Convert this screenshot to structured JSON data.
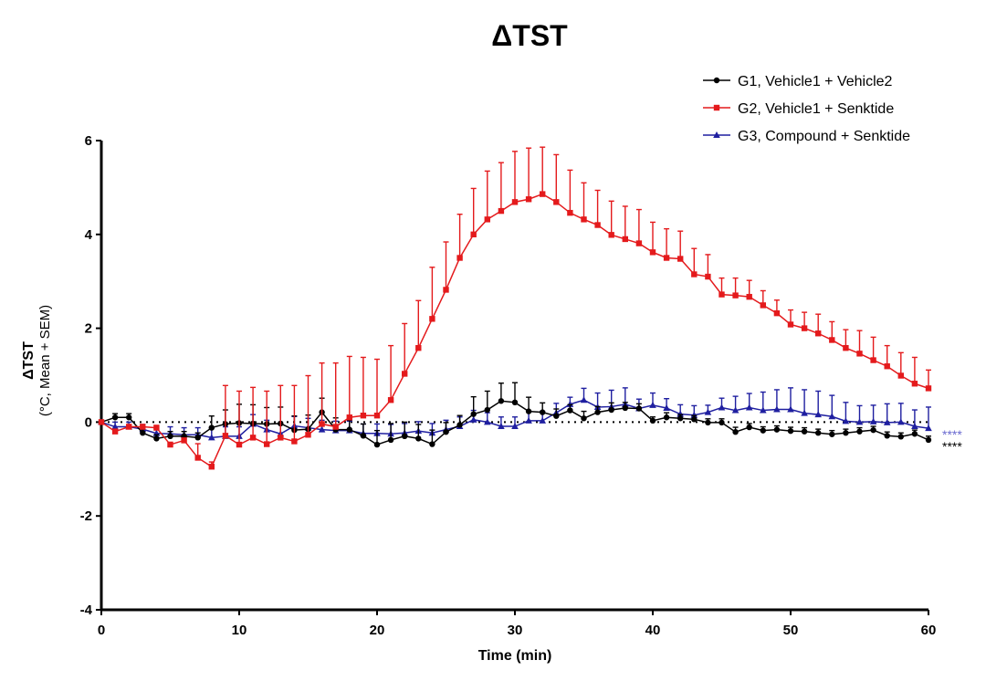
{
  "chart_data": {
    "type": "line",
    "title": "ΔTST",
    "xlabel": "Time (min)",
    "ylabel": [
      "ΔTST",
      "(°C, Mean + SEM)"
    ],
    "xlim": [
      0,
      60
    ],
    "ylim": [
      -4,
      6
    ],
    "xticks": [
      0,
      10,
      20,
      30,
      40,
      50,
      60
    ],
    "yticks": [
      6,
      4,
      2,
      0,
      -2,
      -4
    ],
    "grid": false,
    "legend_position": "top-right",
    "reference_line": 0,
    "x": [
      0,
      1,
      2,
      3,
      4,
      5,
      6,
      7,
      8,
      9,
      10,
      11,
      12,
      13,
      14,
      15,
      16,
      17,
      18,
      19,
      20,
      21,
      22,
      23,
      24,
      25,
      26,
      27,
      28,
      29,
      30,
      31,
      32,
      33,
      34,
      35,
      36,
      37,
      38,
      39,
      40,
      41,
      42,
      43,
      44,
      45,
      46,
      47,
      48,
      49,
      50,
      51,
      52,
      53,
      54,
      55,
      56,
      57,
      58,
      59,
      60
    ],
    "series": [
      {
        "name": "G1, Vehicle1 + Vehicle2",
        "color": "#000000",
        "marker": "circle",
        "values": [
          0,
          0.1,
          0.1,
          -0.23,
          -0.35,
          -0.3,
          -0.3,
          -0.33,
          -0.12,
          -0.04,
          -0.02,
          -0.03,
          -0.04,
          -0.03,
          -0.17,
          -0.15,
          0.21,
          -0.16,
          -0.16,
          -0.29,
          -0.48,
          -0.38,
          -0.3,
          -0.35,
          -0.47,
          -0.21,
          -0.06,
          0.17,
          0.26,
          0.45,
          0.42,
          0.23,
          0.21,
          0.13,
          0.25,
          0.08,
          0.21,
          0.26,
          0.3,
          0.29,
          0.03,
          0.1,
          0.08,
          0.06,
          -0.01,
          -0.01,
          -0.21,
          -0.11,
          -0.18,
          -0.16,
          -0.19,
          -0.2,
          -0.23,
          -0.26,
          -0.23,
          -0.2,
          -0.17,
          -0.29,
          -0.31,
          -0.25,
          -0.38
        ],
        "sem": [
          0,
          0.08,
          0.08,
          0.08,
          0.08,
          0.1,
          0.1,
          0.1,
          0.25,
          0.3,
          0.4,
          0.4,
          0.35,
          0.35,
          0.3,
          0.3,
          0.3,
          0.25,
          0.2,
          0.25,
          0.3,
          0.35,
          0.3,
          0.3,
          0.3,
          0.2,
          0.2,
          0.37,
          0.4,
          0.38,
          0.42,
          0.3,
          0.2,
          0.15,
          0.12,
          0.15,
          0.12,
          0.15,
          0.12,
          0.1,
          0.08,
          0.1,
          0.08,
          0.08,
          0.08,
          0.08,
          0.1,
          0.08,
          0.08,
          0.08,
          0.08,
          0.08,
          0.08,
          0.08,
          0.08,
          0.08,
          0.08,
          0.08,
          0.08,
          0.08,
          0.08
        ],
        "significance": "****"
      },
      {
        "name": "G2, Vehicle1 + Senktide",
        "color": "#e41a1c",
        "marker": "square",
        "values": [
          0,
          -0.2,
          -0.1,
          -0.1,
          -0.12,
          -0.48,
          -0.39,
          -0.76,
          -0.95,
          -0.29,
          -0.48,
          -0.33,
          -0.47,
          -0.33,
          -0.41,
          -0.27,
          -0.04,
          -0.1,
          0.1,
          0.14,
          0.14,
          0.47,
          1.03,
          1.58,
          2.2,
          2.82,
          3.5,
          4.0,
          4.32,
          4.5,
          4.69,
          4.75,
          4.86,
          4.69,
          4.46,
          4.32,
          4.2,
          3.99,
          3.9,
          3.81,
          3.62,
          3.5,
          3.48,
          3.15,
          3.1,
          2.72,
          2.7,
          2.67,
          2.49,
          2.32,
          2.08,
          2.0,
          1.89,
          1.75,
          1.58,
          1.46,
          1.32,
          1.19,
          0.99,
          0.82,
          0.72
        ],
        "sem": [
          0,
          0.05,
          0.05,
          0.05,
          0.05,
          0.05,
          0.05,
          0.3,
          0.1,
          1.07,
          1.14,
          1.07,
          1.13,
          1.11,
          1.19,
          1.26,
          1.3,
          1.36,
          1.3,
          1.24,
          1.2,
          1.16,
          1.07,
          1.01,
          1.1,
          1.02,
          0.93,
          0.98,
          1.03,
          1.03,
          1.08,
          1.09,
          1.0,
          1.01,
          0.91,
          0.78,
          0.74,
          0.72,
          0.7,
          0.72,
          0.64,
          0.62,
          0.59,
          0.55,
          0.47,
          0.35,
          0.37,
          0.35,
          0.31,
          0.28,
          0.31,
          0.34,
          0.41,
          0.39,
          0.39,
          0.49,
          0.49,
          0.44,
          0.49,
          0.56,
          0.39
        ]
      },
      {
        "name": "G3, Compound + Senktide",
        "color": "#1f1fa0",
        "marker": "triangle",
        "values": [
          0,
          -0.1,
          -0.1,
          -0.15,
          -0.24,
          -0.25,
          -0.27,
          -0.27,
          -0.33,
          -0.3,
          -0.3,
          -0.04,
          -0.16,
          -0.25,
          -0.08,
          -0.12,
          -0.16,
          -0.18,
          -0.18,
          -0.24,
          -0.24,
          -0.25,
          -0.23,
          -0.19,
          -0.23,
          -0.16,
          -0.09,
          0.05,
          0,
          -0.09,
          -0.09,
          0.03,
          0.03,
          0.2,
          0.38,
          0.47,
          0.32,
          0.33,
          0.38,
          0.29,
          0.36,
          0.3,
          0.17,
          0.15,
          0.21,
          0.31,
          0.25,
          0.31,
          0.25,
          0.27,
          0.27,
          0.19,
          0.16,
          0.12,
          0.02,
          0,
          0.01,
          -0.01,
          0,
          -0.09,
          -0.13
        ],
        "sem": [
          0,
          0.1,
          0.1,
          0.1,
          0.1,
          0.15,
          0.15,
          0.15,
          0.2,
          0.2,
          0.2,
          0.2,
          0.2,
          0.2,
          0.2,
          0.2,
          0.2,
          0.2,
          0.2,
          0.2,
          0.2,
          0.2,
          0.2,
          0.2,
          0.2,
          0.2,
          0.2,
          0.2,
          0.2,
          0.2,
          0.2,
          0.2,
          0.2,
          0.2,
          0.15,
          0.25,
          0.3,
          0.35,
          0.35,
          0.2,
          0.26,
          0.2,
          0.2,
          0.2,
          0.15,
          0.2,
          0.3,
          0.3,
          0.39,
          0.42,
          0.46,
          0.5,
          0.5,
          0.45,
          0.4,
          0.35,
          0.35,
          0.4,
          0.4,
          0.35,
          0.45
        ],
        "significance": "****",
        "significance_color": "#6a6ad0"
      }
    ]
  }
}
